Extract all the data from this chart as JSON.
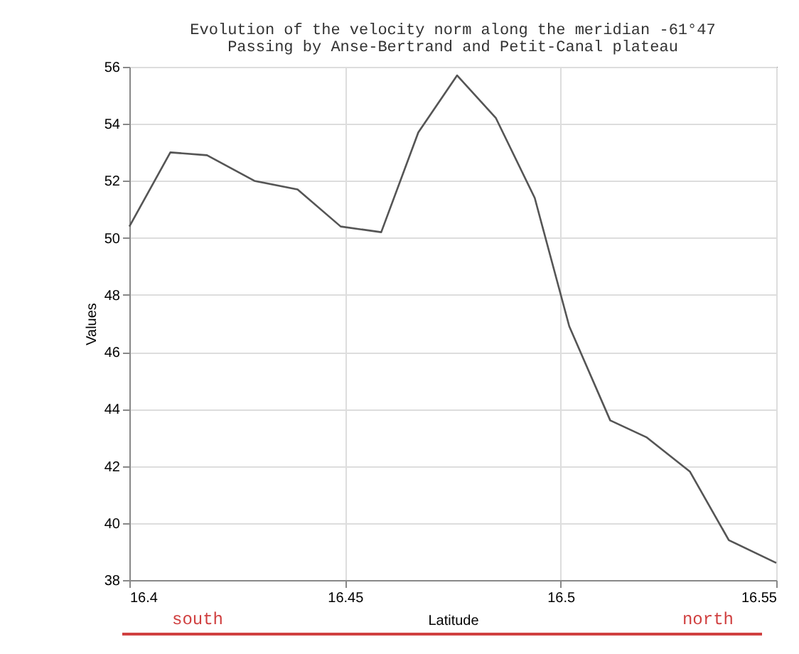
{
  "chart_data": {
    "type": "line",
    "title": "Evolution of the velocity norm along the meridian -61°47",
    "subtitle": "Passing by Anse-Bertrand and Petit-Canal plateau",
    "xlabel": "Latitude",
    "ylabel": "Values",
    "x": [
      16.4,
      16.4095,
      16.418,
      16.429,
      16.439,
      16.449,
      16.4584,
      16.467,
      16.476,
      16.485,
      16.494,
      16.502,
      16.5115,
      16.52,
      16.53,
      16.539,
      16.55
    ],
    "series": [
      {
        "color": "#555555",
        "values": [
          50.4,
          53.0,
          52.9,
          52.0,
          51.7,
          50.4,
          50.2,
          53.7,
          55.7,
          54.2,
          51.4,
          46.9,
          43.6,
          43.0,
          41.8,
          39.4,
          38.6
        ]
      }
    ],
    "xlim": [
      16.4,
      16.55
    ],
    "xticks": [
      16.4,
      16.45,
      16.5,
      16.55
    ],
    "ylim": [
      38,
      56
    ],
    "yticks": [
      38,
      40,
      42,
      44,
      46,
      48,
      50,
      52,
      54,
      56
    ],
    "grid": true,
    "marker": "none",
    "line_style": "solid",
    "annotations": [
      "south",
      "north"
    ]
  }
}
